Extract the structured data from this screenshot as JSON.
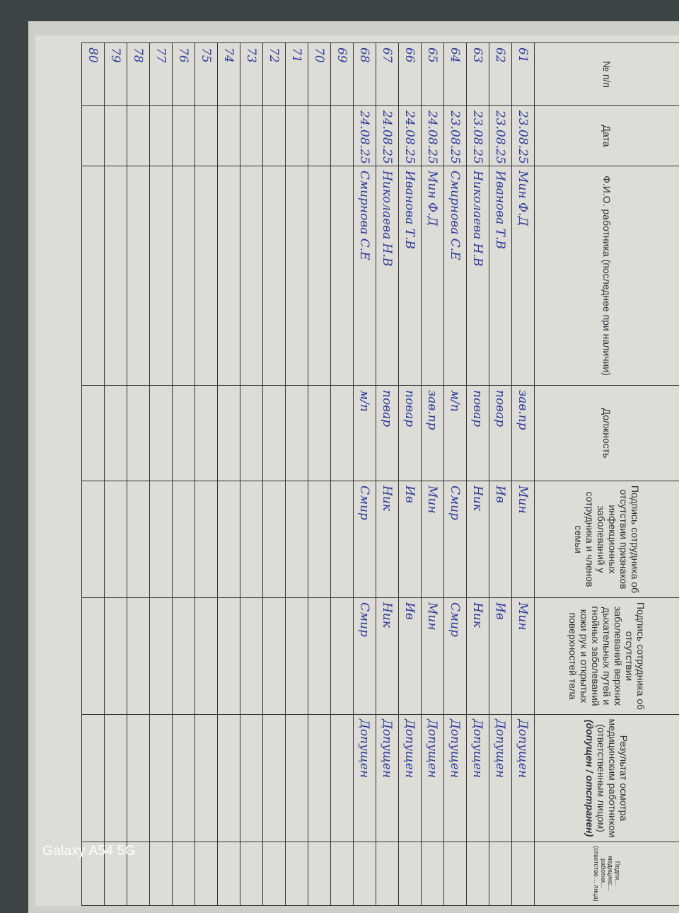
{
  "journal": {
    "headers": [
      "№ п/п",
      "Дата",
      "Ф.И.О. работника (последнее при наличии)",
      "Должность",
      "Подпись сотрудника об отсутствии признаков инфекционных заболеваний у сотрудника и членов семьи",
      "Подпись сотрудника об отсутствии заболеваний верхних дыхательных путей и гнойных заболеваний кожи рук и открытых поверхностей тела",
      "Результат осмотра медицинским работником (ответственным лицом)",
      "Подпи… медицинс… работни… (ответстве… лица)"
    ],
    "result_note": "(допущен / отстранен)",
    "rows": [
      {
        "num": "61",
        "date": "23.08.25",
        "name": "Мин Ф.Д",
        "position": "зав.пр",
        "sig1": "Мин",
        "sig2": "Мин",
        "result": "Допущен"
      },
      {
        "num": "62",
        "date": "23.08.25",
        "name": "Иванова Т.В",
        "position": "повар",
        "sig1": "Ив",
        "sig2": "Ив",
        "result": "Допущен"
      },
      {
        "num": "63",
        "date": "23.08.25",
        "name": "Николаева Н.В",
        "position": "повар",
        "sig1": "Ник",
        "sig2": "Ник",
        "result": "Допущен"
      },
      {
        "num": "64",
        "date": "23.08.25",
        "name": "Смирнова С.Е",
        "position": "м/п",
        "sig1": "Смир",
        "sig2": "Смир",
        "result": "Допущен"
      },
      {
        "num": "65",
        "date": "24.08.25",
        "name": "Мин Ф.Д",
        "position": "зав.пр",
        "sig1": "Мин",
        "sig2": "Мин",
        "result": "Допущен"
      },
      {
        "num": "66",
        "date": "24.08.25",
        "name": "Иванова Т.В",
        "position": "повар",
        "sig1": "Ив",
        "sig2": "Ив",
        "result": "Допущен"
      },
      {
        "num": "67",
        "date": "24.08.25",
        "name": "Николаева Н.В",
        "position": "повар",
        "sig1": "Ник",
        "sig2": "Ник",
        "result": "Допущен"
      },
      {
        "num": "68",
        "date": "24.08.25",
        "name": "Смирнова С.Е",
        "position": "м/п",
        "sig1": "Смир",
        "sig2": "Смир",
        "result": "Допущен"
      },
      {
        "num": "69"
      },
      {
        "num": "70"
      },
      {
        "num": "71"
      },
      {
        "num": "72"
      },
      {
        "num": "73"
      },
      {
        "num": "74"
      },
      {
        "num": "75"
      },
      {
        "num": "76"
      },
      {
        "num": "77"
      },
      {
        "num": "78"
      },
      {
        "num": "79"
      },
      {
        "num": "80"
      }
    ]
  },
  "watermark": "Galaxy A54 5G",
  "colors": {
    "ink": "#2b3a9c",
    "paper": "#dedcd6",
    "lines": "#333333"
  }
}
